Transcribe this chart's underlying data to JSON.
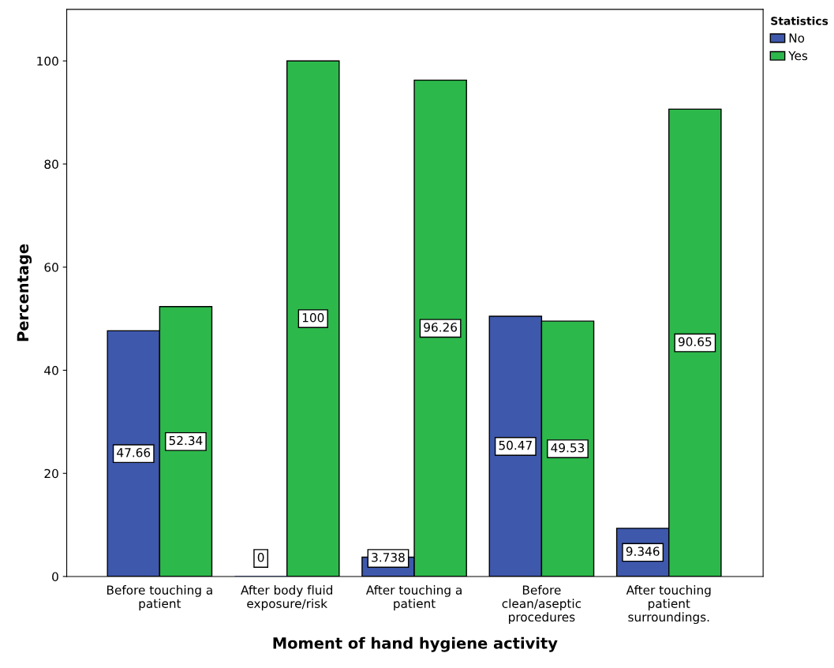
{
  "chart_data": {
    "type": "bar",
    "xlabel": "Moment of hand hygiene activity",
    "ylabel": "Percentage",
    "categories": [
      "Before touching a\npatient",
      "After body fluid\nexposure/risk",
      "After touching a\npatient",
      "Before\nclean/aseptic\nprocedures",
      "After touching\npatient\nsurroundings."
    ],
    "series": [
      {
        "name": "No",
        "color": "#3e58ac",
        "values": [
          47.66,
          0,
          3.738,
          50.47,
          9.346
        ]
      },
      {
        "name": "Yes",
        "color": "#2db84b",
        "values": [
          52.34,
          100,
          96.26,
          49.53,
          90.65
        ]
      }
    ],
    "ylim": [
      0,
      110
    ],
    "yticks": [
      0,
      20,
      40,
      60,
      80,
      100
    ],
    "grid": false,
    "legend": "top right",
    "legend_title": "Statistics",
    "data_labels": true
  }
}
